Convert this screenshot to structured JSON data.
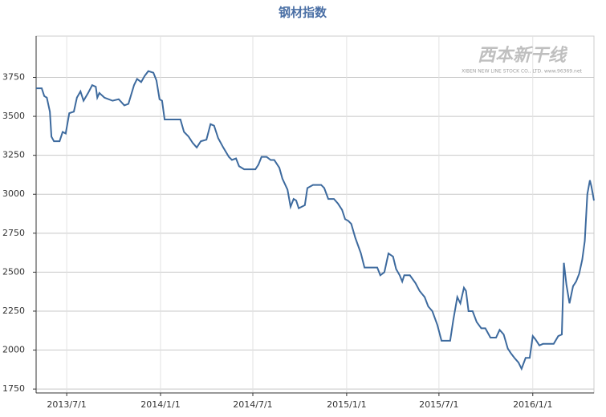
{
  "chart_data": {
    "type": "line",
    "title": "钢材指数",
    "watermark": "西本新干线",
    "watermark_sub": "XIBEN NEW LINE STOCK CO., LTD. www.96369.net",
    "xlim": [
      "2013/5/2",
      "2016/4/30"
    ],
    "xticks": [
      "2013/7/1",
      "2014/1/1",
      "2014/7/1",
      "2015/1/1",
      "2015/7/1",
      "2016/1/1"
    ],
    "ylim": [
      1725,
      4015
    ],
    "yticks": [
      1750,
      2000,
      2250,
      2500,
      2750,
      3000,
      3250,
      3500,
      3750
    ],
    "grid": true,
    "series": [
      {
        "name": "钢材指数",
        "color": "#3d6a9e",
        "x": [
          "2013/5/2",
          "2013/5/13",
          "2013/5/18",
          "2013/5/23",
          "2013/5/29",
          "2013/6/1",
          "2013/6/6",
          "2013/6/17",
          "2013/6/23",
          "2013/6/29",
          "2013/7/6",
          "2013/7/15",
          "2013/7/21",
          "2013/7/28",
          "2013/8/3",
          "2013/8/12",
          "2013/8/20",
          "2013/8/27",
          "2013/8/30",
          "2013/9/3",
          "2013/9/13",
          "2013/9/29",
          "2013/10/11",
          "2013/10/22",
          "2013/10/30",
          "2013/11/10",
          "2013/11/16",
          "2013/11/24",
          "2013/12/1",
          "2013/12/8",
          "2013/12/18",
          "2013/12/24",
          "2013/12/30",
          "2014/1/4",
          "2014/1/9",
          "2014/2/9",
          "2014/2/16",
          "2014/2/25",
          "2014/3/5",
          "2014/3/13",
          "2014/3/21",
          "2014/4/1",
          "2014/4/9",
          "2014/4/16",
          "2014/4/24",
          "2014/5/4",
          "2014/5/15",
          "2014/5/21",
          "2014/5/29",
          "2014/6/4",
          "2014/6/14",
          "2014/7/6",
          "2014/7/12",
          "2014/7/18",
          "2014/7/28",
          "2014/8/5",
          "2014/8/12",
          "2014/8/22",
          "2014/8/28",
          "2014/9/7",
          "2014/9/13",
          "2014/9/19",
          "2014/9/24",
          "2014/9/29",
          "2014/10/11",
          "2014/10/16",
          "2014/10/27",
          "2014/11/12",
          "2014/11/18",
          "2014/11/26",
          "2014/12/7",
          "2014/12/15",
          "2014/12/23",
          "2014/12/29",
          "2015/1/4",
          "2015/1/10",
          "2015/1/18",
          "2015/1/29",
          "2015/2/5",
          "2015/3/2",
          "2015/3/8",
          "2015/3/16",
          "2015/3/24",
          "2015/4/2",
          "2015/4/8",
          "2015/4/15",
          "2015/4/20",
          "2015/4/24",
          "2015/5/5",
          "2015/5/16",
          "2015/5/24",
          "2015/6/3",
          "2015/6/10",
          "2015/6/18",
          "2015/6/28",
          "2015/7/6",
          "2015/7/13",
          "2015/7/23",
          "2015/7/29",
          "2015/8/6",
          "2015/8/12",
          "2015/8/19",
          "2015/8/23",
          "2015/8/28",
          "2015/9/5",
          "2015/9/13",
          "2015/9/22",
          "2015/9/30",
          "2015/10/10",
          "2015/10/21",
          "2015/10/28",
          "2015/11/5",
          "2015/11/13",
          "2015/11/19",
          "2015/11/26",
          "2015/12/4",
          "2015/12/10",
          "2015/12/18",
          "2015/12/26",
          "2016/1/1",
          "2016/1/6",
          "2016/1/14",
          "2016/1/21",
          "2016/2/11",
          "2016/2/20",
          "2016/2/27",
          "2016/3/2",
          "2016/3/7",
          "2016/3/13",
          "2016/3/20",
          "2016/3/26",
          "2016/4/1",
          "2016/4/7",
          "2016/4/12",
          "2016/4/17",
          "2016/4/22",
          "2016/4/25",
          "2016/4/30"
        ],
        "values": [
          3680,
          3680,
          3630,
          3620,
          3530,
          3370,
          3340,
          3340,
          3400,
          3390,
          3520,
          3530,
          3620,
          3660,
          3600,
          3650,
          3700,
          3690,
          3620,
          3650,
          3620,
          3600,
          3610,
          3570,
          3580,
          3700,
          3740,
          3720,
          3760,
          3790,
          3780,
          3730,
          3610,
          3600,
          3480,
          3480,
          3400,
          3370,
          3330,
          3300,
          3340,
          3350,
          3450,
          3440,
          3360,
          3300,
          3240,
          3220,
          3230,
          3180,
          3160,
          3160,
          3190,
          3240,
          3240,
          3220,
          3220,
          3170,
          3100,
          3030,
          2920,
          2970,
          2960,
          2910,
          2930,
          3040,
          3060,
          3060,
          3040,
          2970,
          2970,
          2940,
          2900,
          2840,
          2830,
          2810,
          2720,
          2620,
          2530,
          2530,
          2480,
          2500,
          2620,
          2600,
          2520,
          2480,
          2440,
          2480,
          2480,
          2430,
          2380,
          2340,
          2280,
          2250,
          2160,
          2060,
          2060,
          2060,
          2190,
          2340,
          2300,
          2400,
          2380,
          2250,
          2250,
          2180,
          2140,
          2140,
          2080,
          2080,
          2130,
          2100,
          2010,
          1980,
          1950,
          1920,
          1880,
          1950,
          1950,
          2090,
          2070,
          2030,
          2040,
          2040,
          2090,
          2100,
          2560,
          2420,
          2300,
          2410,
          2440,
          2490,
          2580,
          2700,
          3000,
          3090,
          3050,
          2960
        ]
      }
    ]
  }
}
